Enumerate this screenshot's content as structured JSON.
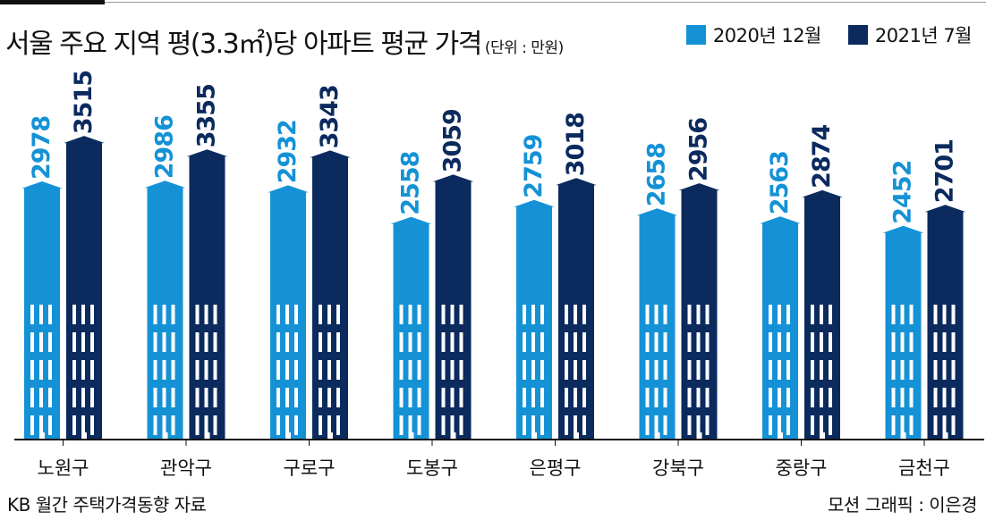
{
  "title": "서울 주요 지역 평(3.3㎡)당 아파트 평균 가격",
  "unit": "(단위 : 만원)",
  "source": "KB 월간 주택가격동향 자료",
  "credit": "모션 그래픽 : 이은경",
  "colors": {
    "series1": "#1592d6",
    "series2": "#0b2a5e"
  },
  "chart_data": {
    "type": "bar",
    "categories": [
      "노원구",
      "관악구",
      "구로구",
      "도봉구",
      "은평구",
      "강북구",
      "중랑구",
      "금천구"
    ],
    "series": [
      {
        "name": "2020년 12월",
        "values": [
          2978,
          2986,
          2932,
          2558,
          2759,
          2658,
          2563,
          2452
        ]
      },
      {
        "name": "2021년 7월",
        "values": [
          3515,
          3355,
          3343,
          3059,
          3018,
          2956,
          2874,
          2701
        ]
      }
    ],
    "legend_position": "top-right",
    "grid": false
  }
}
